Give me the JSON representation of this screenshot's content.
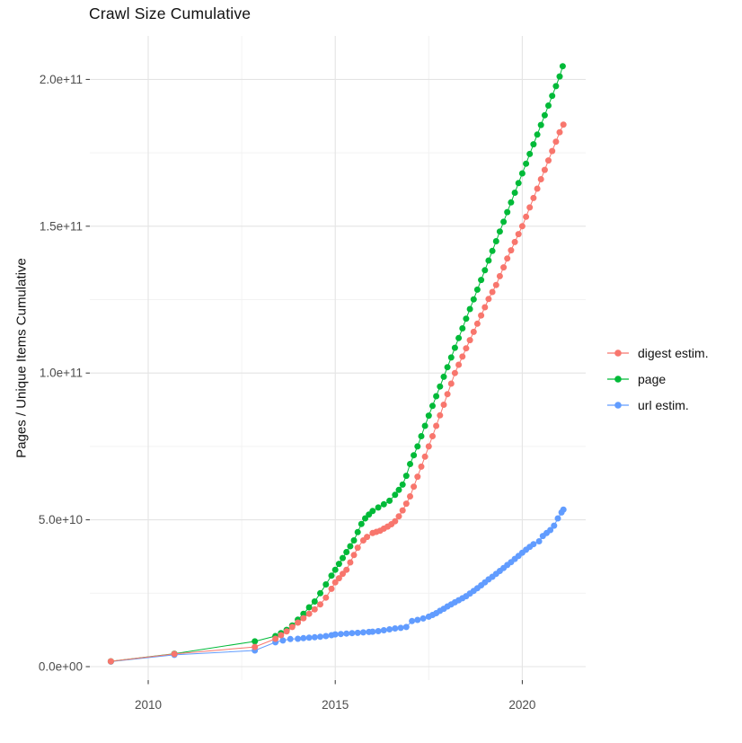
{
  "chart_data": {
    "type": "scatter",
    "title": "Crawl Size Cumulative",
    "xlabel": "",
    "ylabel": "Pages / Unique Items Cumulative",
    "legend_position": "right",
    "grid": true,
    "value_unit_multiplier": 1000000000.0,
    "xlim": [
      2008.4,
      2021.8
    ],
    "ylim": [
      0,
      215000000000.0
    ],
    "x_ticks": {
      "major": [
        2010,
        2015,
        2020
      ],
      "minor": [
        2012.5,
        2017.5
      ]
    },
    "y_ticks": {
      "major_values_e9": [
        0,
        50,
        100,
        150,
        200
      ],
      "major_labels": [
        "0.0e+00",
        "5.0e+10",
        "1.0e+11",
        "1.5e+11",
        "2.0e+11"
      ],
      "minor_values_e9": [
        25,
        75,
        125,
        175
      ]
    },
    "series": [
      {
        "name": "digest estim.",
        "color": "#F8766D",
        "points_year_billions": [
          [
            2009,
            1.8
          ],
          [
            2010.7,
            4.3
          ],
          [
            2012.85,
            6.7
          ],
          [
            2013.4,
            9.5
          ],
          [
            2013.55,
            10.7
          ],
          [
            2013.7,
            12
          ],
          [
            2013.85,
            13.5
          ],
          [
            2014,
            15
          ],
          [
            2014.15,
            16.5
          ],
          [
            2014.3,
            18
          ],
          [
            2014.45,
            19.5
          ],
          [
            2014.6,
            21.2
          ],
          [
            2014.75,
            23.5
          ],
          [
            2014.9,
            26.5
          ],
          [
            2015,
            28.7
          ],
          [
            2015.1,
            30.1
          ],
          [
            2015.2,
            31.6
          ],
          [
            2015.3,
            33
          ],
          [
            2015.4,
            35.5
          ],
          [
            2015.5,
            38
          ],
          [
            2015.6,
            40.5
          ],
          [
            2015.75,
            43
          ],
          [
            2015.85,
            44.2
          ],
          [
            2016,
            45.5
          ],
          [
            2016.1,
            45.9
          ],
          [
            2016.2,
            46.3
          ],
          [
            2016.3,
            47
          ],
          [
            2016.4,
            47.7
          ],
          [
            2016.5,
            48.5
          ],
          [
            2016.6,
            49.5
          ],
          [
            2016.7,
            51.2
          ],
          [
            2016.8,
            53.2
          ],
          [
            2016.9,
            55.5
          ],
          [
            2017,
            58
          ],
          [
            2017.1,
            61.3
          ],
          [
            2017.2,
            64.7
          ],
          [
            2017.3,
            68.1
          ],
          [
            2017.4,
            71.5
          ],
          [
            2017.5,
            75
          ],
          [
            2017.6,
            78.5
          ],
          [
            2017.7,
            82
          ],
          [
            2017.8,
            85.6
          ],
          [
            2017.9,
            89.2
          ],
          [
            2018,
            92.8
          ],
          [
            2018.1,
            96.4
          ],
          [
            2018.2,
            100
          ],
          [
            2018.3,
            102.8
          ],
          [
            2018.4,
            105.6
          ],
          [
            2018.5,
            108.4
          ],
          [
            2018.6,
            111.2
          ],
          [
            2018.7,
            114
          ],
          [
            2018.8,
            116.8
          ],
          [
            2018.9,
            119.6
          ],
          [
            2019,
            122.4
          ],
          [
            2019.1,
            125.2
          ],
          [
            2019.2,
            127.6
          ],
          [
            2019.3,
            130
          ],
          [
            2019.4,
            133
          ],
          [
            2019.5,
            136
          ],
          [
            2019.6,
            139
          ],
          [
            2019.7,
            141.8
          ],
          [
            2019.8,
            144.6
          ],
          [
            2019.9,
            147.3
          ],
          [
            2020,
            150
          ],
          [
            2020.1,
            153.2
          ],
          [
            2020.2,
            156.4
          ],
          [
            2020.3,
            159.6
          ],
          [
            2020.4,
            162.8
          ],
          [
            2020.5,
            166
          ],
          [
            2020.6,
            169.2
          ],
          [
            2020.7,
            172.4
          ],
          [
            2020.8,
            175.6
          ],
          [
            2020.9,
            178.8
          ],
          [
            2021,
            182
          ],
          [
            2021.1,
            184.6
          ]
        ]
      },
      {
        "name": "page",
        "color": "#00BA38",
        "points_year_billions": [
          [
            2009,
            1.8
          ],
          [
            2010.7,
            4.4
          ],
          [
            2012.85,
            8.6
          ],
          [
            2013.4,
            10.4
          ],
          [
            2013.55,
            11.4
          ],
          [
            2013.7,
            12.5
          ],
          [
            2013.85,
            14
          ],
          [
            2014,
            16
          ],
          [
            2014.15,
            18
          ],
          [
            2014.3,
            20.2
          ],
          [
            2014.45,
            22.2
          ],
          [
            2014.6,
            25
          ],
          [
            2014.75,
            28
          ],
          [
            2014.9,
            31
          ],
          [
            2015,
            33
          ],
          [
            2015.1,
            35
          ],
          [
            2015.2,
            37
          ],
          [
            2015.3,
            39
          ],
          [
            2015.4,
            41
          ],
          [
            2015.5,
            43
          ],
          [
            2015.6,
            45.8
          ],
          [
            2015.7,
            48.6
          ],
          [
            2015.8,
            50.5
          ],
          [
            2015.9,
            51.8
          ],
          [
            2016,
            53
          ],
          [
            2016.15,
            54.2
          ],
          [
            2016.3,
            55.3
          ],
          [
            2016.45,
            56.5
          ],
          [
            2016.6,
            58.5
          ],
          [
            2016.7,
            60.2
          ],
          [
            2016.8,
            62
          ],
          [
            2016.9,
            65
          ],
          [
            2017,
            69
          ],
          [
            2017.1,
            72
          ],
          [
            2017.2,
            75
          ],
          [
            2017.3,
            78.5
          ],
          [
            2017.4,
            82
          ],
          [
            2017.5,
            85.5
          ],
          [
            2017.6,
            88.8
          ],
          [
            2017.7,
            92.1
          ],
          [
            2017.8,
            95.4
          ],
          [
            2017.9,
            98.7
          ],
          [
            2018,
            102
          ],
          [
            2018.1,
            105.3
          ],
          [
            2018.2,
            108.6
          ],
          [
            2018.3,
            111.9
          ],
          [
            2018.4,
            115.2
          ],
          [
            2018.5,
            118.5
          ],
          [
            2018.6,
            121.8
          ],
          [
            2018.7,
            125.1
          ],
          [
            2018.8,
            128.4
          ],
          [
            2018.9,
            131.7
          ],
          [
            2019,
            135
          ],
          [
            2019.1,
            138.3
          ],
          [
            2019.2,
            141.6
          ],
          [
            2019.3,
            144.9
          ],
          [
            2019.4,
            148.2
          ],
          [
            2019.5,
            151.5
          ],
          [
            2019.6,
            154.8
          ],
          [
            2019.7,
            158.1
          ],
          [
            2019.8,
            161.4
          ],
          [
            2019.9,
            164.7
          ],
          [
            2020,
            168
          ],
          [
            2020.1,
            171.3
          ],
          [
            2020.2,
            174.6
          ],
          [
            2020.3,
            177.9
          ],
          [
            2020.4,
            181.2
          ],
          [
            2020.5,
            184.5
          ],
          [
            2020.6,
            187.8
          ],
          [
            2020.7,
            191.1
          ],
          [
            2020.8,
            194.4
          ],
          [
            2020.9,
            197.7
          ],
          [
            2021,
            201
          ],
          [
            2021.08,
            204.5
          ]
        ]
      },
      {
        "name": "url estim.",
        "color": "#619CFF",
        "points_year_billions": [
          [
            2009,
            1.7
          ],
          [
            2010.7,
            4
          ],
          [
            2012.85,
            5.5
          ],
          [
            2013.4,
            8.3
          ],
          [
            2013.6,
            8.9
          ],
          [
            2013.8,
            9.4
          ],
          [
            2014,
            9.5
          ],
          [
            2014.15,
            9.7
          ],
          [
            2014.3,
            9.85
          ],
          [
            2014.45,
            10
          ],
          [
            2014.6,
            10.2
          ],
          [
            2014.75,
            10.4
          ],
          [
            2014.9,
            10.7
          ],
          [
            2015,
            11
          ],
          [
            2015.15,
            11.1
          ],
          [
            2015.3,
            11.25
          ],
          [
            2015.45,
            11.4
          ],
          [
            2015.6,
            11.5
          ],
          [
            2015.75,
            11.65
          ],
          [
            2015.9,
            11.8
          ],
          [
            2016,
            11.9
          ],
          [
            2016.15,
            12.1
          ],
          [
            2016.3,
            12.4
          ],
          [
            2016.45,
            12.7
          ],
          [
            2016.6,
            13
          ],
          [
            2016.75,
            13.2
          ],
          [
            2016.9,
            13.5
          ],
          [
            2017.05,
            15.5
          ],
          [
            2017.2,
            15.9
          ],
          [
            2017.35,
            16.4
          ],
          [
            2017.5,
            17
          ],
          [
            2017.6,
            17.6
          ],
          [
            2017.7,
            18.2
          ],
          [
            2017.8,
            19
          ],
          [
            2017.9,
            19.7
          ],
          [
            2018,
            20.5
          ],
          [
            2018.1,
            21.2
          ],
          [
            2018.2,
            21.9
          ],
          [
            2018.3,
            22.6
          ],
          [
            2018.4,
            23.3
          ],
          [
            2018.5,
            24
          ],
          [
            2018.6,
            24.9
          ],
          [
            2018.7,
            25.8
          ],
          [
            2018.8,
            26.7
          ],
          [
            2018.9,
            27.7
          ],
          [
            2019,
            28.7
          ],
          [
            2019.1,
            29.7
          ],
          [
            2019.2,
            30.6
          ],
          [
            2019.3,
            31.6
          ],
          [
            2019.4,
            32.6
          ],
          [
            2019.5,
            33.6
          ],
          [
            2019.6,
            34.6
          ],
          [
            2019.7,
            35.6
          ],
          [
            2019.8,
            36.7
          ],
          [
            2019.9,
            37.7
          ],
          [
            2020,
            38.8
          ],
          [
            2020.1,
            39.8
          ],
          [
            2020.2,
            40.8
          ],
          [
            2020.3,
            41.7
          ],
          [
            2020.45,
            42.7
          ],
          [
            2020.55,
            44.5
          ],
          [
            2020.65,
            45.5
          ],
          [
            2020.75,
            46.5
          ],
          [
            2020.85,
            48
          ],
          [
            2020.95,
            50.5
          ],
          [
            2021.05,
            52.5
          ],
          [
            2021.1,
            53.5
          ]
        ]
      }
    ]
  },
  "colors": {
    "background": "#FFFFFF",
    "grid_major": "#E4E4E4",
    "grid_minor": "#F2F2F2",
    "axis_text": "#4D4D4D",
    "tick_mark": "#333333",
    "title_text": "#111111"
  }
}
